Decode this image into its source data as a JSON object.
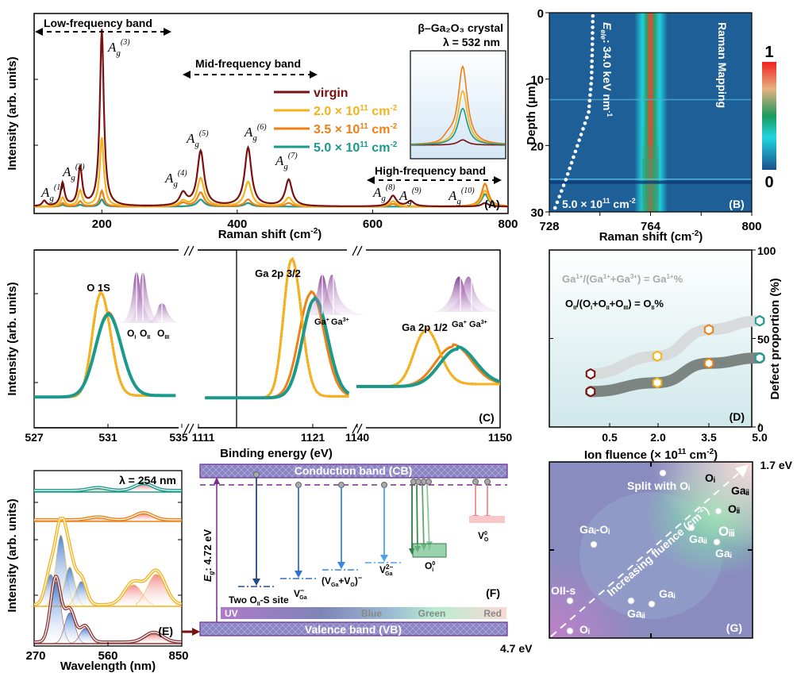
{
  "chart_data": [
    {
      "panel": "A",
      "type": "line",
      "panel_label": "(A)",
      "xlabel": "Raman shift (cm⁻²)",
      "ylabel": "Intensity (arb. units)",
      "xlim": [
        100,
        800
      ],
      "xticks": [
        200,
        400,
        600,
        800
      ],
      "title_lines": [
        "β–Ga₂O₃ crystal",
        "λ = 532  nm"
      ],
      "bands": [
        {
          "label": "Low-frequency band",
          "x": [
            100,
            290
          ]
        },
        {
          "label": "Mid-frequency band",
          "x": [
            315,
            510
          ]
        },
        {
          "label": "High-frequency band",
          "x": [
            590,
            795
          ]
        }
      ],
      "modes": [
        {
          "label": "A",
          "sub": "g",
          "sup": "(1)",
          "x": 142
        },
        {
          "label": "A",
          "sub": "g",
          "sup": "(2)",
          "x": 168
        },
        {
          "label": "A",
          "sub": "g",
          "sup": "(3)",
          "x": 200
        },
        {
          "label": "A",
          "sub": "g",
          "sup": "(4)",
          "x": 320
        },
        {
          "label": "A",
          "sub": "g",
          "sup": "(5)",
          "x": 346
        },
        {
          "label": "A",
          "sub": "g",
          "sup": "(6)",
          "x": 416
        },
        {
          "label": "A",
          "sub": "g",
          "sup": "(7)",
          "x": 476
        },
        {
          "label": "A",
          "sub": "g",
          "sup": "(8)",
          "x": 630
        },
        {
          "label": "A",
          "sub": "g",
          "sup": "(9)",
          "x": 656
        },
        {
          "label": "A",
          "sub": "g",
          "sup": "(10)",
          "x": 766
        }
      ],
      "series": [
        {
          "name": "virgin",
          "color": "#7b1010",
          "peaks": [
            [
              115,
              0.03
            ],
            [
              142,
              0.13
            ],
            [
              168,
              0.22
            ],
            [
              200,
              1.0
            ],
            [
              320,
              0.07
            ],
            [
              346,
              0.31
            ],
            [
              416,
              0.33
            ],
            [
              476,
              0.15
            ],
            [
              630,
              0.06
            ],
            [
              656,
              0.03
            ],
            [
              766,
              0.02
            ]
          ]
        },
        {
          "name": "2.0 × 10¹¹ cm⁻²",
          "color": "#f5b21a",
          "peaks": [
            [
              142,
              0.05
            ],
            [
              168,
              0.09
            ],
            [
              200,
              0.39
            ],
            [
              320,
              0.03
            ],
            [
              346,
              0.16
            ],
            [
              416,
              0.14
            ],
            [
              476,
              0.05
            ],
            [
              630,
              0.03
            ],
            [
              766,
              0.09
            ]
          ]
        },
        {
          "name": "3.5 × 10¹¹ cm⁻²",
          "color": "#f07f14",
          "peaks": [
            [
              142,
              0.02
            ],
            [
              168,
              0.03
            ],
            [
              200,
              0.09
            ],
            [
              320,
              0.02
            ],
            [
              346,
              0.08
            ],
            [
              416,
              0.04
            ],
            [
              476,
              0.02
            ],
            [
              630,
              0.015
            ],
            [
              766,
              0.13
            ]
          ]
        },
        {
          "name": "5.0 × 10¹¹ cm⁻²",
          "color": "#1a9a8c",
          "peaks": [
            [
              142,
              0.01
            ],
            [
              168,
              0.01
            ],
            [
              200,
              0.04
            ],
            [
              346,
              0.04
            ],
            [
              416,
              0.02
            ],
            [
              766,
              0.07
            ]
          ]
        }
      ],
      "inset": {
        "description": "Zoom of A_g(10) peak",
        "peaks": {
          "virgin": 0.06,
          "2.0": 0.62,
          "3.5": 0.9,
          "5.0": 0.42
        }
      }
    },
    {
      "panel": "B",
      "type": "heatmap",
      "panel_label": "(B)",
      "xlabel": "Raman shift (cm⁻²)",
      "ylabel": "Depth (μm)",
      "xlim": [
        728,
        800
      ],
      "ylim": [
        0,
        30
      ],
      "xticks": [
        728,
        764,
        800
      ],
      "yticks": [
        0,
        10,
        20,
        30
      ],
      "colorbar": {
        "min": 0,
        "max": 1,
        "min_label": "0",
        "max_label": "1"
      },
      "annotations": [
        "Raman Mapping",
        "Eₑₗₑ: 34.0 keV nm⁻¹",
        "5.0 × 10¹¹ cm⁻²"
      ],
      "peak_center": 764,
      "intensity_profile_depth": [
        [
          0,
          1.0
        ],
        [
          5,
          0.95
        ],
        [
          10,
          1.0
        ],
        [
          13,
          0.98
        ],
        [
          17,
          0.95
        ],
        [
          20,
          0.8
        ],
        [
          22,
          0.55
        ],
        [
          25,
          0.45
        ],
        [
          28,
          0.55
        ],
        [
          30,
          0.55
        ]
      ],
      "electronic_loss_curve_x_at_depth": [
        [
          0,
          743.5
        ],
        [
          5,
          743.3
        ],
        [
          10,
          743
        ],
        [
          15,
          742
        ],
        [
          20,
          738
        ],
        [
          25,
          734
        ],
        [
          30,
          729.5
        ]
      ]
    },
    {
      "panel": "C",
      "type": "line",
      "panel_label": "(C)",
      "xlabel": "Binding energy (eV)",
      "ylabel": "Intensity (arb. units)",
      "segments": [
        {
          "xlim": [
            527,
            535
          ],
          "xticks": [
            527,
            531,
            535
          ],
          "peak_label": "O 1S",
          "components": [
            "Oᵢ",
            "Oᵢᵢ",
            "Oᵢᵢᵢ"
          ],
          "peaks": {
            "virgin": 530.6,
            "2.0": 530.6,
            "3.5": 531.0,
            "5.0": 531.0
          }
        },
        {
          "xlim": [
            1111,
            1123
          ],
          "xticks": [
            1111,
            1121
          ],
          "peak_label": "Ga 2p 3/2",
          "components": [
            "Ga⁺",
            "Ga³⁺"
          ],
          "peaks": {
            "virgin": 1118.0,
            "2.0": 1118.0,
            "3.5": 1119.7,
            "5.0": 1120.0
          }
        },
        {
          "xlim": [
            1140,
            1150
          ],
          "xticks": [
            1140,
            1150
          ],
          "peak_label": "Ga 2p 1/2",
          "components": [
            "Ga⁺",
            "Ga³⁺"
          ],
          "peaks": {
            "virgin": 1144.8,
            "2.0": 1144.8,
            "3.5": 1146.7,
            "5.0": 1147.0
          }
        }
      ]
    },
    {
      "panel": "D",
      "type": "scatter",
      "panel_label": "(D)",
      "xlabel": "Ion fluence (× 10¹¹ cm⁻²)",
      "ylabel": "Defect proportion (%)",
      "categories": [
        "0.5",
        "2.0",
        "3.5",
        "5.0"
      ],
      "ylim": [
        0,
        100
      ],
      "yticks": [
        0,
        50,
        100
      ],
      "series": [
        {
          "name": "Ga¹⁺/(Ga¹⁺+Ga³⁺) = Ga¹⁺%",
          "band_color": "#d8dbdb",
          "values": [
            30,
            40,
            55,
            60
          ]
        },
        {
          "name": "Oᵢᵢ/(Oᵢ+Oᵢᵢ+Oᵢᵢᵢ) = Oᵢᵢ%",
          "band_color": "#7d8583",
          "values": [
            20,
            25,
            36,
            39
          ]
        }
      ],
      "marker_colors": [
        "#7b1010",
        "#f5b21a",
        "#f07f14",
        "#1a9a8c"
      ]
    },
    {
      "panel": "E",
      "type": "line",
      "panel_label": "(E)",
      "xlabel": "Wavelength (nm)",
      "ylabel": "Intensity (arb. units)",
      "xlim": [
        270,
        850
      ],
      "xticks": [
        270,
        560,
        850
      ],
      "annotation": "λ = 254  nm",
      "series": [
        {
          "name": "5.0",
          "color": "#1a9a8c",
          "peaks": [
            [
              520,
              0.2
            ],
            [
              700,
              0.5
            ]
          ]
        },
        {
          "name": "3.5",
          "color": "#f07f14",
          "peaks": [
            [
              520,
              0.2
            ],
            [
              700,
              0.5
            ]
          ]
        },
        {
          "name": "2.0",
          "color": "#f5b21a",
          "peaks": [
            [
              335,
              0.45
            ],
            [
              375,
              1.0
            ],
            [
              410,
              0.55
            ],
            [
              455,
              0.35
            ],
            [
              660,
              0.3
            ],
            [
              750,
              0.45
            ]
          ]
        },
        {
          "name": "virgin",
          "color": "#8e3a3a",
          "peaks": [
            [
              355,
              1.0
            ],
            [
              410,
              0.5
            ],
            [
              470,
              0.25
            ],
            [
              740,
              0.15
            ]
          ]
        }
      ]
    }
  ],
  "panelF": {
    "label": "(F)",
    "cb_label": "Conduction band (CB)",
    "vb_label": "Valence band (VB)",
    "gap_label": "Eᵍ: 4.72 eV",
    "spectrum_labels": [
      "UV",
      "Blue",
      "Green",
      "Red"
    ],
    "levels": [
      {
        "label": "Two Oᵢᵢ-S site",
        "color": "#24488f"
      },
      {
        "label": "V⁻ Ga",
        "color": "#2f6fd0"
      },
      {
        "label": "(Vᴳₐ+Vₒ)⁻",
        "color": "#3b86e0"
      },
      {
        "label": "V²⁻ Ga",
        "color": "#4aa4f0"
      },
      {
        "label": "Oᵢ⁰",
        "color": "#2e8b4a"
      },
      {
        "label": "Vₒ⁰",
        "color": "#f08a8a"
      }
    ]
  },
  "panelG": {
    "label": "(G)",
    "top_right": "1.7 eV",
    "bottom_left": "4.7 eV",
    "axis_label": "Increasing fluence (cm⁻²)",
    "points": [
      {
        "label": "Split with Oᵢ"
      },
      {
        "label": "Oᵢ"
      },
      {
        "label": "Gaᵢᵢ"
      },
      {
        "label": "Oᵢᵢ"
      },
      {
        "label": "Oᵢᵢᵢ"
      },
      {
        "label": "Gaᵢᵢ"
      },
      {
        "label": "Gaᵢ"
      },
      {
        "label": "Gaᵢ-Oᵢ"
      },
      {
        "label": "OII-s"
      },
      {
        "label": "Gaᵢ"
      },
      {
        "label": "Gaᵢᵢ"
      },
      {
        "label": "Oᵢ"
      }
    ]
  },
  "text": {
    "A_lowband": "Low-frequency band",
    "A_midband": "Mid-frequency band",
    "A_highband": "High-frequency band",
    "A_title1": "β–Ga₂O₃ crystal",
    "A_title2": "λ = 532  nm",
    "A_legend": [
      "virgin",
      "2.0 × 10",
      "3.5 × 10",
      "5.0 × 10"
    ],
    "A_xlabel": "Raman shift (cm",
    "ylabel": "Intensity (arb. units)",
    "B_xlabel": "Raman shift (cm",
    "B_ylabel": "Depth (μm)",
    "B_mapping": "Raman Mapping",
    "B_eloss": "34.0 keV nm",
    "B_fluence": "5.0 × 10",
    "C_xlabel": "Binding energy (eV)",
    "C_O1s": "O 1S",
    "C_Ga32": "Ga 2p 3/2",
    "C_Ga12": "Ga 2p 1/2",
    "D_xlabel": "Ion fluence (× 10",
    "D_ylabel": "Defect proportion (%)",
    "E_lambda": "λ = 254  nm",
    "E_xlabel": "Wavelength (nm)",
    "F_cb": "Conduction band (CB)",
    "F_vb": "Valence band (VB)",
    "G_axis": "Increasing fluence (cm",
    "G_top": "1.7 eV",
    "G_bottom": "4.7 eV"
  }
}
